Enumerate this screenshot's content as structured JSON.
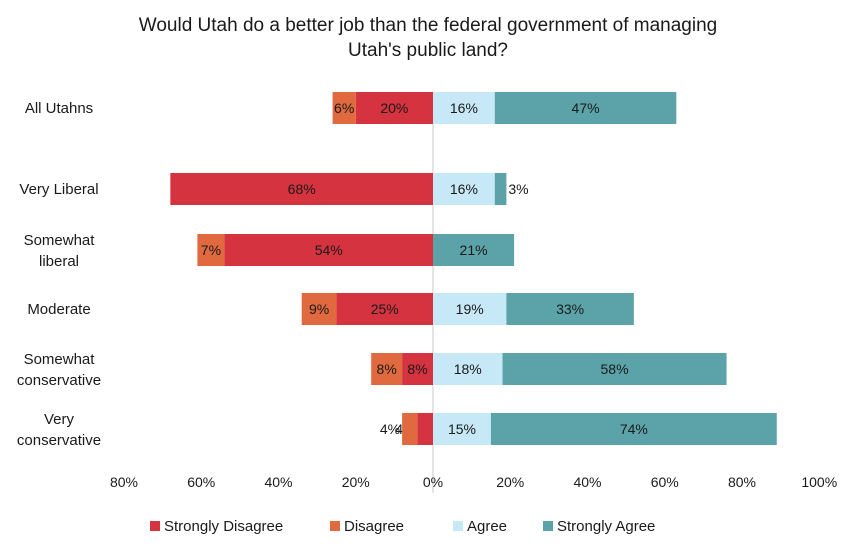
{
  "chart_data": {
    "type": "bar",
    "orientation": "horizontal-diverging",
    "title": "Would Utah do a better job than the federal government of managing Utah's public land?",
    "title_lines": [
      "Would Utah do a better job than the federal government of managing",
      "Utah's public land?"
    ],
    "categories": [
      [
        "All Utahns"
      ],
      [
        "Very Liberal"
      ],
      [
        "Somewhat",
        "liberal"
      ],
      [
        "Moderate"
      ],
      [
        "Somewhat",
        "conservative"
      ],
      [
        "Very",
        "conservative"
      ]
    ],
    "series": [
      {
        "name": "Strongly Disagree",
        "color": "#d4333f",
        "direction": "left",
        "values": [
          20,
          68,
          54,
          25,
          8,
          4
        ]
      },
      {
        "name": "Disagree",
        "color": "#e0693f",
        "direction": "left",
        "values": [
          6,
          0,
          7,
          9,
          8,
          4
        ]
      },
      {
        "name": "Agree",
        "color": "#c6e8f7",
        "direction": "right",
        "values": [
          16,
          16,
          0,
          19,
          18,
          15
        ]
      },
      {
        "name": "Strongly Agree",
        "color": "#5ba3a8",
        "direction": "right",
        "values": [
          47,
          3,
          21,
          33,
          58,
          74
        ]
      }
    ],
    "data_labels": [
      [
        "20%",
        "6%",
        "16%",
        "47%"
      ],
      [
        "68%",
        "",
        "16%",
        "3%"
      ],
      [
        "54%",
        "7%",
        "",
        "21%"
      ],
      [
        "25%",
        "9%",
        "19%",
        "33%"
      ],
      [
        "8%",
        "8%",
        "18%",
        "58%"
      ],
      [
        "4%",
        "4%",
        "15%",
        "74%"
      ]
    ],
    "xlim": [
      -80,
      100
    ],
    "x_ticks": [
      -80,
      -60,
      -40,
      -20,
      0,
      20,
      40,
      60,
      80,
      100
    ],
    "x_tick_labels": [
      "80%",
      "60%",
      "40%",
      "20%",
      "0%",
      "20%",
      "40%",
      "60%",
      "80%",
      "100%"
    ],
    "grid": false,
    "legend_position": "bottom"
  }
}
